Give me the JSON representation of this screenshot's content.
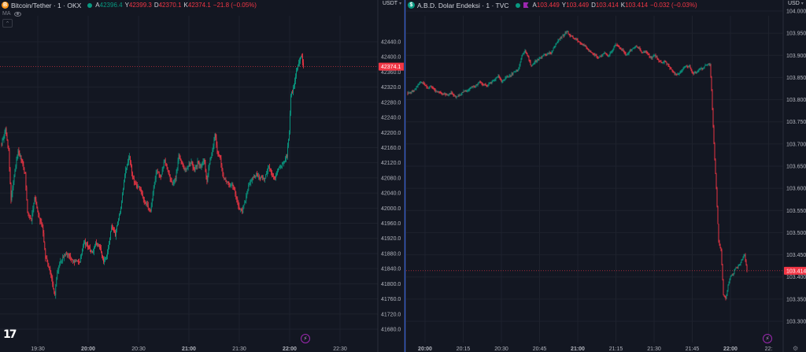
{
  "left_chart": {
    "symbol_icon": "B",
    "title": "Bitcoin/Tether · 1 · OKX",
    "ohlc": {
      "o_label": "A",
      "o": "42396.4",
      "h_label": "Y",
      "h": "42399.3",
      "l_label": "D",
      "l": "42370.1",
      "c_label": "K",
      "c": "42374.1",
      "change": "−21.8 (−0.05%)"
    },
    "indicator": "MA",
    "unit": "USDT",
    "last_price": "42374.1",
    "last_price_value": 42374.1,
    "price_labels": [
      "42440.0",
      "42400.0",
      "42360.0",
      "42320.0",
      "42280.0",
      "42240.0",
      "42200.0",
      "42160.0",
      "42120.0",
      "42080.0",
      "42040.0",
      "42000.0",
      "41960.0",
      "41920.0",
      "41880.0",
      "41840.0",
      "41800.0",
      "41760.0",
      "41720.0",
      "41680.0"
    ],
    "time_labels": [
      "19:30",
      "20:00",
      "20:30",
      "21:00",
      "21:30",
      "22:00",
      "22:30"
    ],
    "chart_data": {
      "type": "candlestick",
      "x_start": "19:43",
      "interval_minutes": 1,
      "close_path": [
        [
          0,
          42170
        ],
        [
          5,
          42210
        ],
        [
          9,
          42150
        ],
        [
          12,
          42020
        ],
        [
          17,
          42100
        ],
        [
          21,
          42150
        ],
        [
          25,
          42130
        ],
        [
          30,
          42090
        ],
        [
          33,
          41990
        ],
        [
          38,
          41970
        ],
        [
          42,
          42030
        ],
        [
          47,
          41980
        ],
        [
          52,
          41950
        ],
        [
          56,
          41870
        ],
        [
          61,
          41840
        ],
        [
          65,
          41800
        ],
        [
          68,
          41770
        ],
        [
          71,
          41830
        ],
        [
          75,
          41860
        ],
        [
          79,
          41870
        ],
        [
          85,
          41880
        ],
        [
          90,
          41860
        ],
        [
          95,
          41860
        ],
        [
          100,
          41860
        ],
        [
          105,
          41910
        ],
        [
          110,
          41900
        ],
        [
          116,
          41880
        ],
        [
          120,
          41910
        ],
        [
          125,
          41900
        ],
        [
          130,
          41860
        ],
        [
          135,
          41880
        ],
        [
          140,
          41950
        ],
        [
          145,
          41930
        ],
        [
          152,
          42000
        ],
        [
          158,
          42100
        ],
        [
          163,
          42140
        ],
        [
          167,
          42080
        ],
        [
          172,
          42060
        ],
        [
          177,
          42050
        ],
        [
          181,
          42020
        ],
        [
          185,
          42010
        ],
        [
          190,
          41990
        ],
        [
          195,
          42070
        ],
        [
          198,
          42100
        ],
        [
          203,
          42080
        ],
        [
          208,
          42130
        ],
        [
          212,
          42100
        ],
        [
          218,
          42060
        ],
        [
          222,
          42080
        ],
        [
          226,
          42140
        ],
        [
          230,
          42120
        ],
        [
          234,
          42100
        ],
        [
          238,
          42110
        ],
        [
          242,
          42120
        ],
        [
          246,
          42100
        ],
        [
          250,
          42120
        ],
        [
          254,
          42110
        ],
        [
          258,
          42130
        ],
        [
          262,
          42070
        ],
        [
          265,
          42120
        ],
        [
          269,
          42150
        ],
        [
          272,
          42200
        ],
        [
          275,
          42150
        ],
        [
          279,
          42130
        ],
        [
          283,
          42080
        ],
        [
          287,
          42070
        ],
        [
          291,
          42060
        ],
        [
          295,
          42060
        ],
        [
          299,
          42030
        ],
        [
          303,
          42000
        ],
        [
          307,
          41990
        ],
        [
          311,
          42020
        ],
        [
          315,
          42060
        ],
        [
          320,
          42080
        ],
        [
          325,
          42090
        ],
        [
          330,
          42080
        ],
        [
          336,
          42080
        ],
        [
          341,
          42110
        ],
        [
          345,
          42090
        ],
        [
          349,
          42080
        ],
        [
          352,
          42100
        ],
        [
          355,
          42110
        ],
        [
          360,
          42120
        ],
        [
          364,
          42140
        ],
        [
          367,
          42200
        ],
        [
          369,
          42300
        ],
        [
          373,
          42320
        ],
        [
          376,
          42360
        ],
        [
          380,
          42390
        ],
        [
          383,
          42400
        ],
        [
          385,
          42374
        ]
      ]
    }
  },
  "right_chart": {
    "symbol_icon": "$",
    "title": "A.B.D. Dolar Endeksi · 1 · TVC",
    "ohlc": {
      "o_label": "A",
      "o": "103.449",
      "h_label": "Y",
      "h": "103.449",
      "l_label": "D",
      "l": "103.414",
      "c_label": "K",
      "c": "103.414",
      "change": "−0.032 (−0.03%)"
    },
    "unit": "USD",
    "last_price": "103.414",
    "last_price_value": 103.414,
    "price_labels": [
      "104.000",
      "103.950",
      "103.900",
      "103.850",
      "103.800",
      "103.750",
      "103.700",
      "103.650",
      "103.600",
      "103.550",
      "103.500",
      "103.450",
      "103.400",
      "103.350",
      "103.300"
    ],
    "time_labels": [
      "20:00",
      "20:15",
      "20:30",
      "20:45",
      "21:00",
      "21:15",
      "21:30",
      "21:45",
      "22:00",
      "22:"
    ],
    "chart_data": {
      "type": "candlestick",
      "x_start": "19:52",
      "interval_minutes": 1,
      "close_path": [
        [
          0,
          103.815
        ],
        [
          6,
          103.818
        ],
        [
          10,
          103.825
        ],
        [
          16,
          103.84
        ],
        [
          20,
          103.835
        ],
        [
          26,
          103.825
        ],
        [
          30,
          103.83
        ],
        [
          35,
          103.82
        ],
        [
          41,
          103.815
        ],
        [
          46,
          103.812
        ],
        [
          50,
          103.81
        ],
        [
          56,
          103.815
        ],
        [
          61,
          103.805
        ],
        [
          66,
          103.81
        ],
        [
          71,
          103.82
        ],
        [
          76,
          103.818
        ],
        [
          80,
          103.83
        ],
        [
          86,
          103.83
        ],
        [
          91,
          103.84
        ],
        [
          96,
          103.835
        ],
        [
          101,
          103.832
        ],
        [
          106,
          103.84
        ],
        [
          110,
          103.845
        ],
        [
          115,
          103.855
        ],
        [
          119,
          103.84
        ],
        [
          124,
          103.85
        ],
        [
          128,
          103.85
        ],
        [
          131,
          103.855
        ],
        [
          136,
          103.865
        ],
        [
          140,
          103.865
        ],
        [
          145,
          103.9
        ],
        [
          149,
          103.91
        ],
        [
          153,
          103.895
        ],
        [
          157,
          103.875
        ],
        [
          161,
          103.885
        ],
        [
          165,
          103.89
        ],
        [
          169,
          103.895
        ],
        [
          174,
          103.9
        ],
        [
          178,
          103.905
        ],
        [
          182,
          103.905
        ],
        [
          186,
          103.92
        ],
        [
          190,
          103.93
        ],
        [
          194,
          103.94
        ],
        [
          198,
          103.945
        ],
        [
          202,
          103.955
        ],
        [
          206,
          103.945
        ],
        [
          210,
          103.94
        ],
        [
          214,
          103.935
        ],
        [
          218,
          103.93
        ],
        [
          222,
          103.925
        ],
        [
          226,
          103.92
        ],
        [
          230,
          103.91
        ],
        [
          234,
          103.905
        ],
        [
          238,
          103.9
        ],
        [
          242,
          103.895
        ],
        [
          246,
          103.9
        ],
        [
          250,
          103.905
        ],
        [
          254,
          103.9
        ],
        [
          258,
          103.905
        ],
        [
          262,
          103.92
        ],
        [
          266,
          103.925
        ],
        [
          270,
          103.915
        ],
        [
          274,
          103.91
        ],
        [
          278,
          103.9
        ],
        [
          282,
          103.91
        ],
        [
          286,
          103.915
        ],
        [
          290,
          103.92
        ],
        [
          294,
          103.915
        ],
        [
          298,
          103.905
        ],
        [
          302,
          103.91
        ],
        [
          306,
          103.9
        ],
        [
          310,
          103.895
        ],
        [
          314,
          103.9
        ],
        [
          318,
          103.89
        ],
        [
          322,
          103.885
        ],
        [
          326,
          103.885
        ],
        [
          330,
          103.88
        ],
        [
          334,
          103.87
        ],
        [
          338,
          103.86
        ],
        [
          342,
          103.855
        ],
        [
          346,
          103.86
        ],
        [
          350,
          103.87
        ],
        [
          354,
          103.875
        ],
        [
          358,
          103.875
        ],
        [
          362,
          103.86
        ],
        [
          366,
          103.86
        ],
        [
          371,
          103.87
        ],
        [
          375,
          103.87
        ],
        [
          379,
          103.88
        ],
        [
          384,
          103.88
        ],
        [
          386,
          103.82
        ],
        [
          389,
          103.7
        ],
        [
          392,
          103.6
        ],
        [
          395,
          103.48
        ],
        [
          398,
          103.46
        ],
        [
          401,
          103.36
        ],
        [
          404,
          103.35
        ],
        [
          407,
          103.38
        ],
        [
          410,
          103.4
        ],
        [
          413,
          103.405
        ],
        [
          416,
          103.42
        ],
        [
          419,
          103.42
        ],
        [
          422,
          103.43
        ],
        [
          425,
          103.44
        ],
        [
          428,
          103.45
        ],
        [
          431,
          103.414
        ]
      ]
    }
  },
  "colors": {
    "up": "#089981",
    "down": "#f23645",
    "bg": "#131722",
    "grid": "#1e222d",
    "text": "#b2b5be",
    "accent": "#2962ff"
  },
  "icons": {
    "lightning": "lightning-icon",
    "settings": "gear-icon",
    "logo": "tradingview-logo"
  }
}
